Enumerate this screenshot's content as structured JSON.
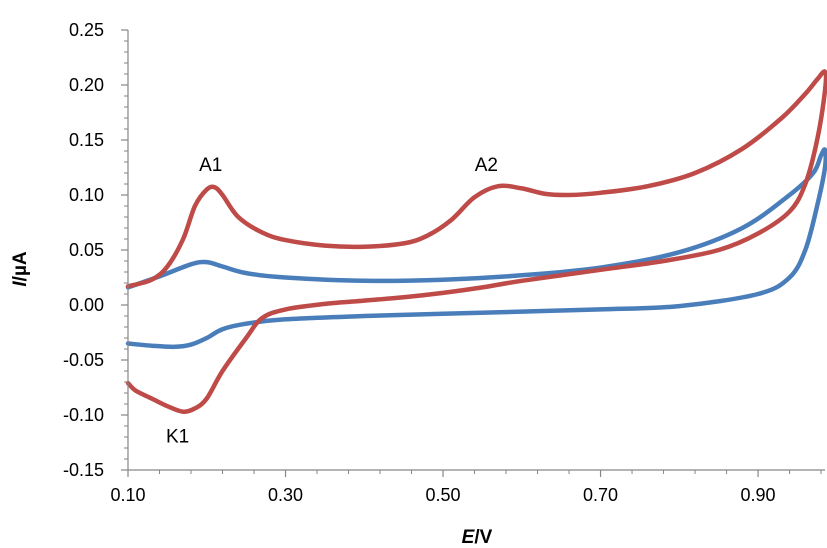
{
  "chart_data": {
    "type": "line",
    "xlabel": {
      "var": "E",
      "unit": "/V"
    },
    "ylabel": {
      "var": "I",
      "unit": "/µA"
    },
    "xlim": [
      0.1,
      0.985
    ],
    "ylim": [
      -0.15,
      0.25
    ],
    "x_ticks": [
      0.1,
      0.3,
      0.5,
      0.7,
      0.9
    ],
    "x_tick_labels": [
      "0.10",
      "0.30",
      "0.50",
      "0.70",
      "0.90"
    ],
    "y_ticks": [
      -0.15,
      -0.1,
      -0.05,
      0.0,
      0.05,
      0.1,
      0.15,
      0.2,
      0.25
    ],
    "y_tick_labels": [
      "-0.15",
      "-0.10",
      "-0.05",
      "0.00",
      "0.05",
      "0.10",
      "0.15",
      "0.20",
      "0.25"
    ],
    "grid": false,
    "legend": "none",
    "series": [
      {
        "color": "#4a7ebb",
        "points": [
          [
            0.1,
            0.016
          ],
          [
            0.14,
            0.026
          ],
          [
            0.18,
            0.037
          ],
          [
            0.2,
            0.039
          ],
          [
            0.22,
            0.035
          ],
          [
            0.25,
            0.029
          ],
          [
            0.3,
            0.025
          ],
          [
            0.4,
            0.022
          ],
          [
            0.5,
            0.023
          ],
          [
            0.6,
            0.027
          ],
          [
            0.7,
            0.034
          ],
          [
            0.8,
            0.048
          ],
          [
            0.88,
            0.07
          ],
          [
            0.94,
            0.1
          ],
          [
            0.97,
            0.12
          ],
          [
            0.98,
            0.136
          ],
          [
            0.985,
            0.141
          ],
          [
            0.985,
            0.125
          ],
          [
            0.975,
            0.09
          ],
          [
            0.96,
            0.05
          ],
          [
            0.94,
            0.025
          ],
          [
            0.9,
            0.01
          ],
          [
            0.8,
            -0.001
          ],
          [
            0.7,
            -0.004
          ],
          [
            0.6,
            -0.006
          ],
          [
            0.5,
            -0.008
          ],
          [
            0.4,
            -0.01
          ],
          [
            0.3,
            -0.013
          ],
          [
            0.25,
            -0.017
          ],
          [
            0.22,
            -0.022
          ],
          [
            0.2,
            -0.03
          ],
          [
            0.18,
            -0.036
          ],
          [
            0.16,
            -0.038
          ],
          [
            0.13,
            -0.037
          ],
          [
            0.1,
            -0.035
          ]
        ]
      },
      {
        "color": "#be4b48",
        "points": [
          [
            0.1,
            0.017
          ],
          [
            0.13,
            0.023
          ],
          [
            0.15,
            0.035
          ],
          [
            0.17,
            0.06
          ],
          [
            0.185,
            0.09
          ],
          [
            0.2,
            0.105
          ],
          [
            0.21,
            0.107
          ],
          [
            0.22,
            0.1
          ],
          [
            0.24,
            0.08
          ],
          [
            0.27,
            0.066
          ],
          [
            0.3,
            0.059
          ],
          [
            0.35,
            0.054
          ],
          [
            0.4,
            0.053
          ],
          [
            0.45,
            0.056
          ],
          [
            0.48,
            0.063
          ],
          [
            0.51,
            0.077
          ],
          [
            0.54,
            0.098
          ],
          [
            0.57,
            0.108
          ],
          [
            0.6,
            0.106
          ],
          [
            0.63,
            0.101
          ],
          [
            0.66,
            0.1
          ],
          [
            0.7,
            0.102
          ],
          [
            0.76,
            0.108
          ],
          [
            0.82,
            0.12
          ],
          [
            0.88,
            0.142
          ],
          [
            0.93,
            0.17
          ],
          [
            0.96,
            0.192
          ],
          [
            0.975,
            0.205
          ],
          [
            0.985,
            0.212
          ],
          [
            0.985,
            0.195
          ],
          [
            0.975,
            0.15
          ],
          [
            0.96,
            0.11
          ],
          [
            0.94,
            0.085
          ],
          [
            0.9,
            0.065
          ],
          [
            0.85,
            0.05
          ],
          [
            0.78,
            0.04
          ],
          [
            0.7,
            0.032
          ],
          [
            0.6,
            0.022
          ],
          [
            0.55,
            0.016
          ],
          [
            0.5,
            0.011
          ],
          [
            0.45,
            0.007
          ],
          [
            0.4,
            0.004
          ],
          [
            0.35,
            0.001
          ],
          [
            0.3,
            -0.004
          ],
          [
            0.27,
            -0.012
          ],
          [
            0.25,
            -0.03
          ],
          [
            0.22,
            -0.06
          ],
          [
            0.2,
            -0.085
          ],
          [
            0.185,
            -0.094
          ],
          [
            0.17,
            -0.097
          ],
          [
            0.15,
            -0.092
          ],
          [
            0.13,
            -0.085
          ],
          [
            0.11,
            -0.078
          ],
          [
            0.1,
            -0.071
          ]
        ]
      }
    ],
    "annotations": [
      {
        "text": "A1",
        "x": 0.205,
        "y": 0.122
      },
      {
        "text": "A2",
        "x": 0.555,
        "y": 0.122
      },
      {
        "text": "K1",
        "x": 0.163,
        "y": -0.125
      }
    ]
  }
}
